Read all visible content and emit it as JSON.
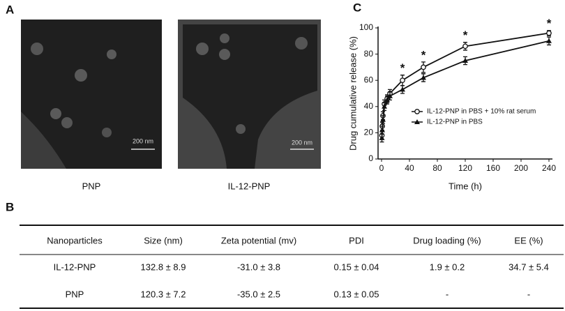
{
  "panels": {
    "a": "A",
    "b": "B",
    "c": "C"
  },
  "images": [
    {
      "caption": "PNP",
      "scale_bar": "200 nm"
    },
    {
      "caption": "IL-12-PNP",
      "scale_bar": "200 nm"
    }
  ],
  "table": {
    "header": [
      "Nanoparticles",
      "Size (nm)",
      "Zeta potential (mv)",
      "PDI",
      "Drug loading (%)",
      "EE (%)"
    ],
    "rows": [
      [
        "IL-12-PNP",
        "132.8 ± 8.9",
        "-31.0 ± 3.8",
        "0.15 ± 0.04",
        "1.9 ± 0.2",
        "34.7 ± 5.4"
      ],
      [
        "PNP",
        "120.3 ± 7.2",
        "-35.0 ± 2.5",
        "0.13 ± 0.05",
        "-",
        "-"
      ]
    ]
  },
  "chart_data": {
    "type": "line",
    "x_label": "Time (h)",
    "y_label": "Drug cumulative release (%)",
    "x": [
      0.5,
      1,
      2,
      4,
      8,
      12,
      30,
      60,
      120,
      240
    ],
    "series": [
      {
        "name": "IL-12-PNP in PBS + 10% rat serum",
        "color": "#111111",
        "marker": "circle-open",
        "values": [
          18,
          25,
          33,
          42,
          46,
          50,
          60,
          70,
          86,
          96
        ],
        "errors": [
          3,
          3,
          3,
          3,
          3,
          3,
          4,
          4,
          3,
          2
        ]
      },
      {
        "name": "IL-12-PNP in PBS",
        "color": "#111111",
        "marker": "triangle",
        "values": [
          16,
          22,
          30,
          40,
          45,
          48,
          53,
          62,
          75,
          90
        ],
        "errors": [
          3,
          3,
          3,
          3,
          3,
          3,
          3,
          3,
          3,
          3
        ]
      }
    ],
    "xlim": [
      -5,
      245
    ],
    "xticks": [
      0,
      40,
      80,
      120,
      160,
      200,
      240
    ],
    "ylim": [
      0,
      100
    ],
    "yticks": [
      0,
      20,
      40,
      60,
      80,
      100
    ],
    "legend": "center-right",
    "annotations": [
      {
        "x": 30,
        "text": "*"
      },
      {
        "x": 60,
        "text": "*"
      },
      {
        "x": 120,
        "text": "*"
      },
      {
        "x": 240,
        "text": "*"
      }
    ]
  }
}
